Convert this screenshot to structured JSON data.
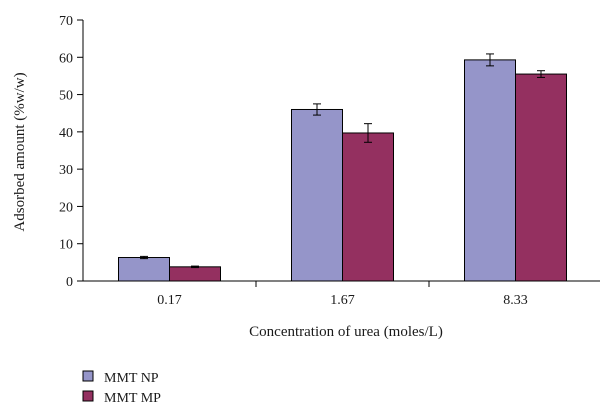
{
  "chart_data": {
    "type": "bar",
    "xlabel": "Concentration of urea (moles/L)",
    "ylabel": "Adsorbed amount (%w/w)",
    "ylim": [
      0,
      70
    ],
    "yticks": [
      0,
      10,
      20,
      30,
      40,
      50,
      60,
      70
    ],
    "categories": [
      "0.17",
      "1.67",
      "8.33"
    ],
    "error_bars": true,
    "grid": false,
    "legend_position": "bottom-left",
    "series": [
      {
        "name": "MMT NP",
        "color": "#9595c9",
        "values": [
          6.3,
          46.0,
          59.3
        ],
        "errors": [
          0.3,
          1.5,
          1.6
        ]
      },
      {
        "name": "MMT MP",
        "color": "#943060",
        "values": [
          3.8,
          39.7,
          55.5
        ],
        "errors": [
          0.2,
          2.5,
          0.9
        ]
      }
    ]
  }
}
